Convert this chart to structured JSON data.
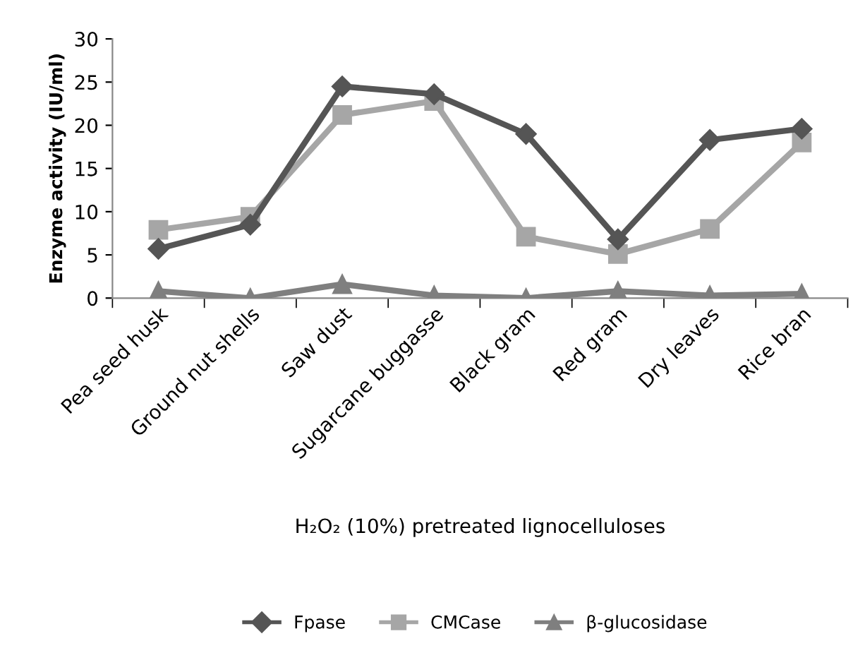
{
  "chart_data": {
    "type": "line",
    "xlabel": "H₂O₂ (10%) pretreated lignocelluloses",
    "ylabel": "Enzyme activity (IU/ml)",
    "categories": [
      "Pea seed husk",
      "Ground nut shells",
      "Saw dust",
      "Sugarcane buggasse",
      "Black gram",
      "Red gram",
      "Dry leaves",
      "Rice bran"
    ],
    "series": [
      {
        "name": "Fpase",
        "color": "#555555",
        "marker": "diamond",
        "values": [
          5.7,
          8.5,
          24.5,
          23.6,
          19,
          6.8,
          18.3,
          19.6
        ]
      },
      {
        "name": "CMCase",
        "color": "#a6a6a6",
        "marker": "square",
        "values": [
          7.9,
          9.4,
          21.2,
          22.8,
          7.1,
          5.1,
          8,
          18
        ]
      },
      {
        "name": "β-glucosidase",
        "color": "#7f7f7f",
        "marker": "triangle",
        "values": [
          0.8,
          0,
          1.6,
          0.3,
          0,
          0.8,
          0.3,
          0.5
        ]
      }
    ],
    "ylim": [
      0,
      30
    ],
    "yticks": [
      0,
      5,
      10,
      15,
      20,
      25,
      30
    ],
    "grid": false,
    "legend": "bottom"
  }
}
